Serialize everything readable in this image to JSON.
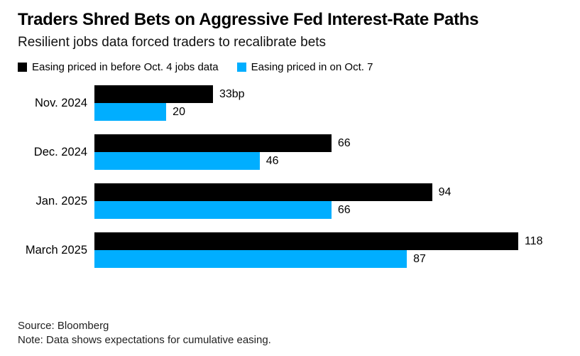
{
  "header": {
    "title": "Traders Shred Bets on Aggressive Fed Interest-Rate Paths",
    "subtitle": "Resilient jobs data forced traders to recalibrate bets"
  },
  "chart_data": {
    "type": "bar",
    "orientation": "horizontal",
    "title": "Traders Shred Bets on Aggressive Fed Interest-Rate Paths",
    "subtitle": "Resilient jobs data forced traders to recalibrate bets",
    "categories": [
      "Nov. 2024",
      "Dec. 2024",
      "Jan. 2025",
      "March 2025"
    ],
    "series": [
      {
        "name": "Easing priced in before Oct. 4 jobs data",
        "color": "#000000",
        "values": [
          33,
          66,
          94,
          118
        ],
        "value_labels": [
          "33bp",
          "66",
          "94",
          "118"
        ]
      },
      {
        "name": "Easing priced in on Oct. 7",
        "color": "#00aeff",
        "values": [
          20,
          46,
          66,
          87
        ],
        "value_labels": [
          "20",
          "46",
          "66",
          "87"
        ]
      }
    ],
    "unit": "bp",
    "xlim": [
      0,
      118
    ],
    "xlabel": "",
    "ylabel": "",
    "grid": false,
    "legend_position": "top"
  },
  "footer": {
    "source": "Source: Bloomberg",
    "note": "Note: Data shows expectations for cumulative easing."
  }
}
